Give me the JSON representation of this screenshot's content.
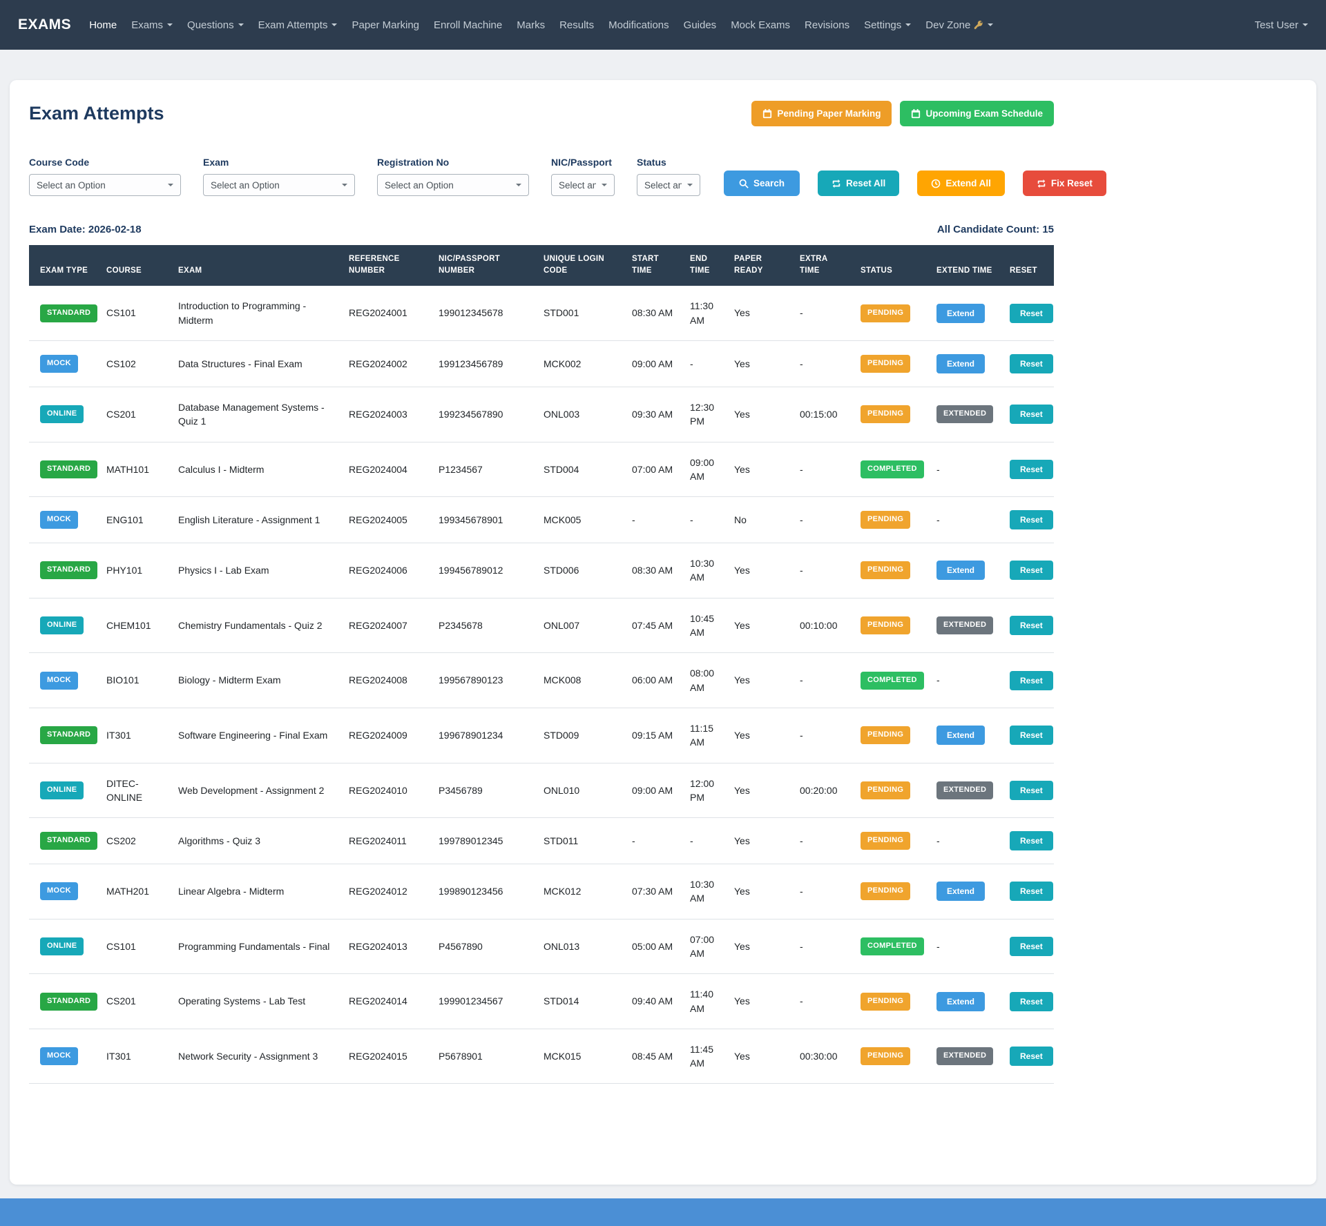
{
  "colors": {
    "navbar_bg": "#2d3c4e",
    "table_header_bg": "#2c3e50",
    "orange": "#ee9d27",
    "green": "#2dbe62",
    "blue": "#3d9ae0",
    "teal": "#17a8b8",
    "red": "#e74c3c",
    "gray_badge": "#6c757d",
    "pending_badge": "#f0a42d",
    "standard_badge": "#28a745",
    "footer_blue": "#4b8fd5"
  },
  "navbar": {
    "brand": "EXAMS",
    "items": [
      {
        "label": "Home",
        "active": true
      },
      {
        "label": "Exams",
        "dropdown": true
      },
      {
        "label": "Questions",
        "dropdown": true
      },
      {
        "label": "Exam Attempts",
        "dropdown": true
      },
      {
        "label": "Paper Marking"
      },
      {
        "label": "Enroll Machine"
      },
      {
        "label": "Marks"
      },
      {
        "label": "Results"
      },
      {
        "label": "Modifications"
      },
      {
        "label": "Guides"
      },
      {
        "label": "Mock Exams"
      },
      {
        "label": "Revisions"
      },
      {
        "label": "Settings",
        "dropdown": true
      },
      {
        "label": "Dev Zone",
        "dropdown": true,
        "icon": "key"
      }
    ],
    "user": {
      "label": "Test User",
      "dropdown": true
    }
  },
  "page": {
    "title": "Exam Attempts",
    "buttons": {
      "pending_paper_marking": "Pending Paper Marking",
      "upcoming_exam_schedule": "Upcoming Exam Schedule"
    }
  },
  "filters": [
    {
      "label": "Course Code",
      "value": "Select an Option"
    },
    {
      "label": "Exam",
      "value": "Select an Option"
    },
    {
      "label": "Registration No",
      "value": "Select an Option"
    },
    {
      "label": "NIC/Passport",
      "value": "Select an ...",
      "compact": true
    },
    {
      "label": "Status",
      "value": "Select an ...",
      "compact": true
    }
  ],
  "actions": {
    "search": "Search",
    "reset_all": "Reset All",
    "extend_all": "Extend All",
    "fix_reset": "Fix Reset"
  },
  "meta": {
    "exam_date_label": "Exam Date:",
    "exam_date": "2026-02-18",
    "candidate_count_label": "All Candidate Count:",
    "candidate_count": "15"
  },
  "table": {
    "headers": [
      "EXAM TYPE",
      "COURSE",
      "EXAM",
      "REFERENCE NUMBER",
      "NIC/PASSPORT NUMBER",
      "UNIQUE LOGIN CODE",
      "START TIME",
      "END TIME",
      "PAPER READY",
      "EXTRA TIME",
      "STATUS",
      "EXTEND TIME",
      "RESET"
    ],
    "rows": [
      {
        "exam_type": "STANDARD",
        "course": "CS101",
        "exam": "Introduction to Programming - Midterm",
        "reference": "REG2024001",
        "nic": "199012345678",
        "login_code": "STD001",
        "start_time": "08:30 AM",
        "end_time": "11:30 AM",
        "paper_ready": "Yes",
        "extra_time": "-",
        "status": "PENDING",
        "extend_time": "Extend",
        "reset": "Reset"
      },
      {
        "exam_type": "MOCK",
        "course": "CS102",
        "exam": "Data Structures - Final Exam",
        "reference": "REG2024002",
        "nic": "199123456789",
        "login_code": "MCK002",
        "start_time": "09:00 AM",
        "end_time": "-",
        "paper_ready": "Yes",
        "extra_time": "-",
        "status": "PENDING",
        "extend_time": "Extend",
        "reset": "Reset"
      },
      {
        "exam_type": "ONLINE",
        "course": "CS201",
        "exam": "Database Management Systems - Quiz 1",
        "reference": "REG2024003",
        "nic": "199234567890",
        "login_code": "ONL003",
        "start_time": "09:30 AM",
        "end_time": "12:30 PM",
        "paper_ready": "Yes",
        "extra_time": "00:15:00",
        "status": "PENDING",
        "extend_time": "EXTENDED",
        "reset": "Reset"
      },
      {
        "exam_type": "STANDARD",
        "course": "MATH101",
        "exam": "Calculus I - Midterm",
        "reference": "REG2024004",
        "nic": "P1234567",
        "login_code": "STD004",
        "start_time": "07:00 AM",
        "end_time": "09:00 AM",
        "paper_ready": "Yes",
        "extra_time": "-",
        "status": "COMPLETED",
        "extend_time": "-",
        "reset": "Reset"
      },
      {
        "exam_type": "MOCK",
        "course": "ENG101",
        "exam": "English Literature - Assignment 1",
        "reference": "REG2024005",
        "nic": "199345678901",
        "login_code": "MCK005",
        "start_time": "-",
        "end_time": "-",
        "paper_ready": "No",
        "extra_time": "-",
        "status": "PENDING",
        "extend_time": "-",
        "reset": "Reset"
      },
      {
        "exam_type": "STANDARD",
        "course": "PHY101",
        "exam": "Physics I - Lab Exam",
        "reference": "REG2024006",
        "nic": "199456789012",
        "login_code": "STD006",
        "start_time": "08:30 AM",
        "end_time": "10:30 AM",
        "paper_ready": "Yes",
        "extra_time": "-",
        "status": "PENDING",
        "extend_time": "Extend",
        "reset": "Reset"
      },
      {
        "exam_type": "ONLINE",
        "course": "CHEM101",
        "exam": "Chemistry Fundamentals - Quiz 2",
        "reference": "REG2024007",
        "nic": "P2345678",
        "login_code": "ONL007",
        "start_time": "07:45 AM",
        "end_time": "10:45 AM",
        "paper_ready": "Yes",
        "extra_time": "00:10:00",
        "status": "PENDING",
        "extend_time": "EXTENDED",
        "reset": "Reset"
      },
      {
        "exam_type": "MOCK",
        "course": "BIO101",
        "exam": "Biology - Midterm Exam",
        "reference": "REG2024008",
        "nic": "199567890123",
        "login_code": "MCK008",
        "start_time": "06:00 AM",
        "end_time": "08:00 AM",
        "paper_ready": "Yes",
        "extra_time": "-",
        "status": "COMPLETED",
        "extend_time": "-",
        "reset": "Reset"
      },
      {
        "exam_type": "STANDARD",
        "course": "IT301",
        "exam": "Software Engineering - Final Exam",
        "reference": "REG2024009",
        "nic": "199678901234",
        "login_code": "STD009",
        "start_time": "09:15 AM",
        "end_time": "11:15 AM",
        "paper_ready": "Yes",
        "extra_time": "-",
        "status": "PENDING",
        "extend_time": "Extend",
        "reset": "Reset"
      },
      {
        "exam_type": "ONLINE",
        "course": "DITEC-ONLINE",
        "exam": "Web Development - Assignment 2",
        "reference": "REG2024010",
        "nic": "P3456789",
        "login_code": "ONL010",
        "start_time": "09:00 AM",
        "end_time": "12:00 PM",
        "paper_ready": "Yes",
        "extra_time": "00:20:00",
        "status": "PENDING",
        "extend_time": "EXTENDED",
        "reset": "Reset"
      },
      {
        "exam_type": "STANDARD",
        "course": "CS202",
        "exam": "Algorithms - Quiz 3",
        "reference": "REG2024011",
        "nic": "199789012345",
        "login_code": "STD011",
        "start_time": "-",
        "end_time": "-",
        "paper_ready": "Yes",
        "extra_time": "-",
        "status": "PENDING",
        "extend_time": "-",
        "reset": "Reset"
      },
      {
        "exam_type": "MOCK",
        "course": "MATH201",
        "exam": "Linear Algebra - Midterm",
        "reference": "REG2024012",
        "nic": "199890123456",
        "login_code": "MCK012",
        "start_time": "07:30 AM",
        "end_time": "10:30 AM",
        "paper_ready": "Yes",
        "extra_time": "-",
        "status": "PENDING",
        "extend_time": "Extend",
        "reset": "Reset"
      },
      {
        "exam_type": "ONLINE",
        "course": "CS101",
        "exam": "Programming Fundamentals - Final",
        "reference": "REG2024013",
        "nic": "P4567890",
        "login_code": "ONL013",
        "start_time": "05:00 AM",
        "end_time": "07:00 AM",
        "paper_ready": "Yes",
        "extra_time": "-",
        "status": "COMPLETED",
        "extend_time": "-",
        "reset": "Reset"
      },
      {
        "exam_type": "STANDARD",
        "course": "CS201",
        "exam": "Operating Systems - Lab Test",
        "reference": "REG2024014",
        "nic": "199901234567",
        "login_code": "STD014",
        "start_time": "09:40 AM",
        "end_time": "11:40 AM",
        "paper_ready": "Yes",
        "extra_time": "-",
        "status": "PENDING",
        "extend_time": "Extend",
        "reset": "Reset"
      },
      {
        "exam_type": "MOCK",
        "course": "IT301",
        "exam": "Network Security - Assignment 3",
        "reference": "REG2024015",
        "nic": "P5678901",
        "login_code": "MCK015",
        "start_time": "08:45 AM",
        "end_time": "11:45 AM",
        "paper_ready": "Yes",
        "extra_time": "00:30:00",
        "status": "PENDING",
        "extend_time": "EXTENDED",
        "reset": "Reset"
      }
    ]
  }
}
